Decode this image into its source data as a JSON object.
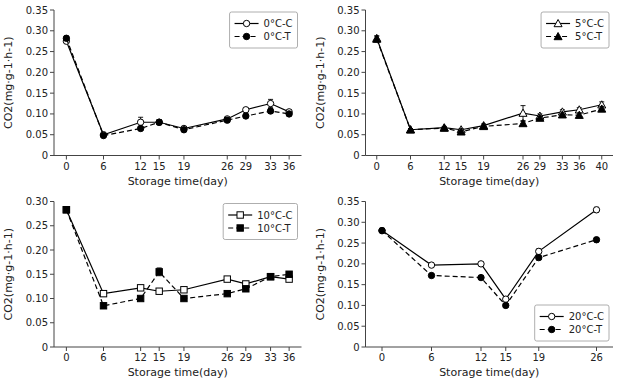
{
  "chart_data": [
    {
      "type": "line",
      "x_label": "Storage time(day)",
      "y_label": "CO2(mg·g-1·h-1)",
      "x": [
        0,
        6,
        12,
        15,
        19,
        26,
        29,
        33,
        36
      ],
      "xlim": [
        -2,
        38
      ],
      "xticks": [
        0,
        6,
        12,
        15,
        19,
        26,
        29,
        33,
        36
      ],
      "ylim": [
        0,
        0.35
      ],
      "yticks": [
        0,
        0.05,
        {
          "value": 0.1,
          "label": "0.10"
        },
        0.15,
        {
          "value": 0.2,
          "label": "0.20"
        },
        0.25,
        {
          "value": 0.3,
          "label": "0.30"
        },
        0.35
      ],
      "legend": "upper right",
      "series": [
        {
          "name": "0°C-C",
          "color": "black",
          "marker": "open-circle",
          "line_style": "solid",
          "values": [
            0.275,
            0.05,
            0.08,
            0.08,
            0.065,
            0.088,
            0.11,
            0.125,
            0.105
          ],
          "errors": [
            0.003,
            0.003,
            0.012,
            0.005,
            0.003,
            0.004,
            0.005,
            0.01,
            0.005
          ]
        },
        {
          "name": "0°C-T",
          "color": "black",
          "marker": "filled-circle",
          "line_style": "dashed",
          "values": [
            0.282,
            0.048,
            0.065,
            0.08,
            0.062,
            0.085,
            0.095,
            0.107,
            0.1
          ],
          "errors": [
            0.005,
            0.003,
            0.005,
            0.006,
            0.003,
            0.005,
            0.004,
            0.006,
            0.004
          ]
        }
      ]
    },
    {
      "type": "line",
      "x_label": "Storage time(day)",
      "y_label": "CO2(mg·g-1·h-1)",
      "x": [
        0,
        6,
        12,
        15,
        19,
        26,
        29,
        33,
        36,
        40
      ],
      "xlim": [
        -2,
        42
      ],
      "xticks": [
        0,
        6,
        12,
        15,
        19,
        26,
        29,
        33,
        36,
        40
      ],
      "ylim": [
        0,
        0.35
      ],
      "yticks": [
        0,
        0.05,
        {
          "value": 0.1,
          "label": "0.10"
        },
        0.15,
        {
          "value": 0.2,
          "label": "0.20"
        },
        0.25,
        {
          "value": 0.3,
          "label": "0.30"
        },
        0.35
      ],
      "legend": "upper right",
      "series": [
        {
          "name": "5°C-C",
          "color": "black",
          "marker": "open-triangle",
          "line_style": "solid",
          "values": [
            0.282,
            0.062,
            0.067,
            0.062,
            0.072,
            0.102,
            0.095,
            0.105,
            0.11,
            0.122
          ],
          "errors": [
            0.006,
            0.003,
            0.003,
            0.003,
            0.004,
            0.018,
            0.005,
            0.005,
            0.005,
            0.007
          ]
        },
        {
          "name": "5°C-T",
          "color": "black",
          "marker": "filled-triangle",
          "line_style": "dashed",
          "values": [
            0.28,
            0.062,
            0.066,
            0.057,
            0.07,
            0.077,
            0.09,
            0.098,
            0.097,
            0.112
          ],
          "errors": [
            0.007,
            0.003,
            0.003,
            0.004,
            0.003,
            0.005,
            0.004,
            0.004,
            0.005,
            0.006
          ]
        }
      ]
    },
    {
      "type": "line",
      "x_label": "Storage time(day)",
      "y_label": "CO2(mg·g-1·h-1)",
      "x": [
        0,
        6,
        12,
        15,
        19,
        26,
        29,
        33,
        36
      ],
      "xlim": [
        -2,
        38
      ],
      "xticks": [
        0,
        6,
        12,
        15,
        19,
        26,
        29,
        33,
        36
      ],
      "ylim": [
        0,
        0.3
      ],
      "yticks": [
        0,
        0.05,
        {
          "value": 0.1,
          "label": "0.10"
        },
        0.15,
        {
          "value": 0.2,
          "label": "0.20"
        },
        0.25,
        {
          "value": 0.3,
          "label": "0.30"
        }
      ],
      "legend": "upper right",
      "series": [
        {
          "name": "10°C-C",
          "color": "black",
          "marker": "open-square",
          "line_style": "solid",
          "values": [
            0.283,
            0.11,
            0.122,
            0.115,
            0.118,
            0.14,
            0.13,
            0.145,
            0.14
          ],
          "errors": [
            0.005,
            0.005,
            0.005,
            0.005,
            0.004,
            0.005,
            0.005,
            0.005,
            0.005
          ]
        },
        {
          "name": "10°C-T",
          "color": "black",
          "marker": "filled-square",
          "line_style": "dashed",
          "values": [
            0.283,
            0.085,
            0.1,
            0.155,
            0.1,
            0.11,
            0.12,
            0.145,
            0.15
          ],
          "errors": [
            0.005,
            0.004,
            0.004,
            0.008,
            0.004,
            0.004,
            0.005,
            0.005,
            0.005
          ]
        }
      ]
    },
    {
      "type": "line",
      "x_label": "Storage time(day)",
      "y_label": "CO2(mg·g-1·h-1)",
      "x": [
        0,
        6,
        12,
        15,
        19,
        26
      ],
      "xlim": [
        -2,
        28
      ],
      "xticks": [
        0,
        6,
        12,
        15,
        19,
        26
      ],
      "ylim": [
        0,
        0.35
      ],
      "yticks": [
        0,
        0.05,
        {
          "value": 0.1,
          "label": "0.10"
        },
        0.15,
        {
          "value": 0.2,
          "label": "0.20"
        },
        0.25,
        {
          "value": 0.3,
          "label": "0.30"
        },
        0.35
      ],
      "legend": "lower right",
      "series": [
        {
          "name": "20°C-C",
          "color": "black",
          "marker": "open-circle",
          "line_style": "solid",
          "values": [
            0.28,
            0.197,
            0.2,
            0.115,
            0.23,
            0.33
          ],
          "errors": [
            0.004,
            0.004,
            0.004,
            0.004,
            0.006,
            0.006
          ]
        },
        {
          "name": "20°C-T",
          "color": "black",
          "marker": "filled-circle",
          "line_style": "dashed",
          "values": [
            0.28,
            0.172,
            0.167,
            0.1,
            0.215,
            0.258
          ],
          "errors": [
            0.004,
            0.004,
            0.004,
            0.004,
            0.005,
            0.005
          ]
        }
      ]
    }
  ]
}
